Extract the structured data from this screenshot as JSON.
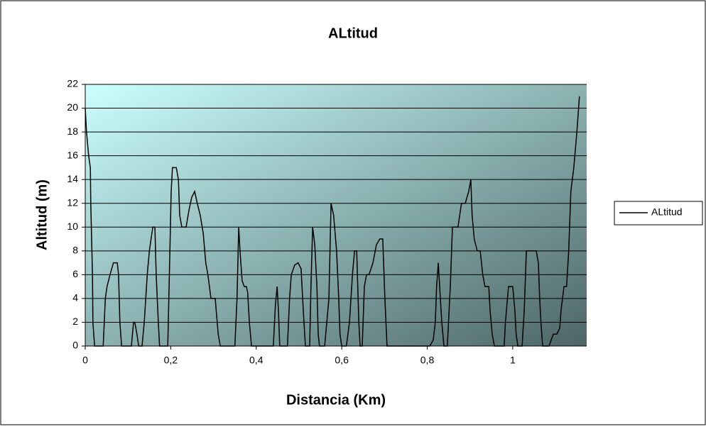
{
  "chart_data": {
    "type": "line",
    "title": "ALtitud",
    "x_label": "Distancia (Km)",
    "y_label": "Altitud (m)",
    "x": [
      0,
      0.003,
      0.008,
      0.012,
      0.013,
      0.017,
      0.018,
      0.022,
      0.042,
      0.047,
      0.051,
      0.058,
      0.066,
      0.075,
      0.078,
      0.081,
      0.085,
      0.1,
      0.108,
      0.113,
      0.116,
      0.121,
      0.125,
      0.133,
      0.138,
      0.145,
      0.15,
      0.158,
      0.163,
      0.166,
      0.171,
      0.174,
      0.193,
      0.198,
      0.201,
      0.204,
      0.213,
      0.218,
      0.221,
      0.226,
      0.236,
      0.243,
      0.249,
      0.256,
      0.262,
      0.269,
      0.276,
      0.282,
      0.287,
      0.294,
      0.304,
      0.311,
      0.316,
      0.339,
      0.35,
      0.355,
      0.359,
      0.362,
      0.367,
      0.372,
      0.377,
      0.38,
      0.384,
      0.389,
      0.395,
      0.424,
      0.44,
      0.445,
      0.449,
      0.452,
      0.455,
      0.473,
      0.478,
      0.482,
      0.49,
      0.498,
      0.505,
      0.51,
      0.515,
      0.525,
      0.528,
      0.532,
      0.537,
      0.542,
      0.545,
      0.548,
      0.56,
      0.57,
      0.575,
      0.581,
      0.588,
      0.593,
      0.596,
      0.6,
      0.611,
      0.618,
      0.625,
      0.63,
      0.635,
      0.64,
      0.643,
      0.648,
      0.653,
      0.658,
      0.664,
      0.673,
      0.681,
      0.689,
      0.696,
      0.701,
      0.706,
      0.731,
      0.797,
      0.806,
      0.814,
      0.819,
      0.822,
      0.826,
      0.829,
      0.834,
      0.839,
      0.847,
      0.854,
      0.859,
      0.864,
      0.872,
      0.88,
      0.889,
      0.897,
      0.902,
      0.905,
      0.91,
      0.917,
      0.924,
      0.93,
      0.935,
      0.944,
      0.947,
      0.952,
      0.957,
      0.973,
      0.98,
      0.983,
      0.99,
      1.0,
      1.005,
      1.008,
      1.012,
      1.022,
      1.027,
      1.032,
      1.04,
      1.047,
      1.055,
      1.06,
      1.063,
      1.066,
      1.07,
      1.085,
      1.09,
      1.095,
      1.103,
      1.11,
      1.113,
      1.12,
      1.126,
      1.131,
      1.136,
      1.143,
      1.15,
      1.156
    ],
    "series": [
      {
        "name": "ALtitud",
        "color": "#000000",
        "values": [
          20,
          18,
          16,
          15,
          12,
          6,
          2,
          0,
          0,
          4,
          5,
          6,
          7,
          7,
          6,
          2,
          0,
          0,
          0,
          2,
          2,
          1,
          0,
          0,
          2,
          6,
          8,
          10,
          10,
          6,
          2,
          0,
          0,
          8,
          13,
          15,
          15,
          14,
          11,
          10,
          10,
          11.5,
          12.5,
          13,
          12,
          11,
          9.5,
          7,
          6,
          4,
          4,
          1,
          0,
          0,
          0,
          4,
          10,
          8,
          5.5,
          5,
          5,
          4.5,
          2,
          0,
          0,
          0,
          0,
          3.5,
          5,
          3,
          0,
          0,
          4,
          6,
          6.8,
          7,
          6.5,
          3,
          0,
          0,
          5,
          10,
          8.5,
          5,
          1,
          0,
          0,
          4,
          12,
          11,
          8,
          4,
          1,
          0,
          0,
          2,
          6,
          8,
          8,
          2,
          0,
          0,
          5,
          6,
          6,
          7,
          8.5,
          9,
          9,
          4,
          0,
          0,
          0,
          0,
          0.5,
          2,
          5,
          7,
          5,
          2,
          0,
          0,
          5,
          10,
          10,
          10,
          12,
          12,
          13,
          14,
          11,
          9,
          8,
          8,
          6,
          5,
          5,
          3,
          1,
          0,
          0,
          0,
          2,
          5,
          5,
          3,
          1,
          0,
          0,
          3,
          8,
          8,
          8,
          8,
          7,
          4,
          2,
          0,
          0,
          0.5,
          1,
          1,
          1.5,
          3,
          5,
          5,
          8,
          13,
          15,
          18,
          21
        ]
      }
    ],
    "xlim": [
      0,
      1.173
    ],
    "xticks": [
      0,
      {
        "value": 0.2,
        "label": "0,2"
      },
      {
        "value": 0.4,
        "label": "0,4"
      },
      {
        "value": 0.6,
        "label": "0,6"
      },
      {
        "value": 0.8,
        "label": "0,8"
      },
      1
    ],
    "ylim": [
      0,
      22
    ],
    "yticks": [
      0,
      2,
      4,
      6,
      8,
      10,
      12,
      14,
      16,
      18,
      20,
      22
    ],
    "grid": true,
    "legend": "right"
  }
}
